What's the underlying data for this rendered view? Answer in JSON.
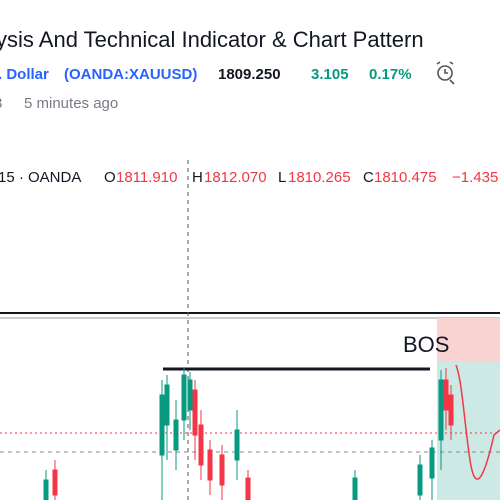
{
  "header": {
    "title": "ysis And Technical Indicator & Chart Pattern",
    "symbol_name": ". Dollar",
    "symbol": "(OANDA:XAUUSD)",
    "price": "1809.250",
    "change": "3.105",
    "change_pct": "0.17%",
    "author_fragment": "3",
    "published": "5 minutes ago"
  },
  "legend": {
    "interval_exchange": "15 · OANDA",
    "open_label": "O",
    "open": "1811.910",
    "high_label": "H",
    "high": "1812.070",
    "low_label": "L",
    "low": "1810.265",
    "close_label": "C",
    "close": "1810.475",
    "change": "−1.435"
  },
  "chart": {
    "annotation": "BOS"
  }
}
